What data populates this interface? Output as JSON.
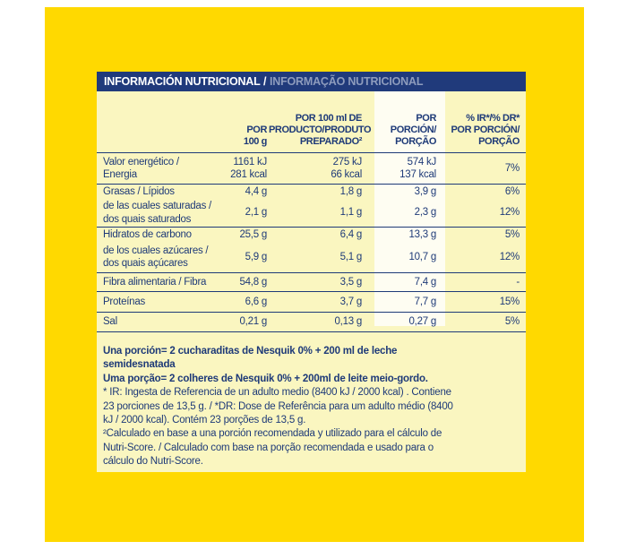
{
  "colors": {
    "package_yellow": "#FFD900",
    "panel_yellow": "#FAF6C0",
    "navy": "#1E3A78",
    "highlight_column": "#FEFDF2",
    "title_secondary": "#8E9CBD"
  },
  "title": {
    "primary": "INFORMACIÓN NUTRICIONAL",
    "separator": " / ",
    "secondary": "INFORMAÇÃO NUTRICIONAL"
  },
  "table": {
    "headers": {
      "per100g": {
        "lines": [
          "POR",
          "100 g"
        ]
      },
      "per100ml": {
        "lines": [
          "POR 100 ml DE",
          "PRODUCTO/PRODUTO",
          "PREPARADO²"
        ]
      },
      "portion": {
        "lines": [
          "POR",
          "PORCIÓN/",
          "PORÇÃO"
        ]
      },
      "ir": {
        "lines": [
          "% IR*/% DR*",
          "POR PORCIÓN/",
          "PORÇÃO"
        ]
      }
    },
    "rows": {
      "energy": {
        "label1": "Valor energético /",
        "label2": "Energia",
        "g1": "1161 kJ",
        "g2": "281 kcal",
        "m1": "275 kJ",
        "m2": "66 kcal",
        "p1": "574 kJ",
        "p2": "137 kcal",
        "ir": "7%"
      },
      "fat": {
        "label": "Grasas / Lípidos",
        "g": "4,4 g",
        "m": "1,8 g",
        "p": "3,9 g",
        "ir": "6%"
      },
      "fat_sat": {
        "label1": "de las cuales saturadas /",
        "label2": "dos quais saturados",
        "g": "2,1 g",
        "m": "1,1 g",
        "p": "2,3 g",
        "ir": "12%"
      },
      "carb": {
        "label": "Hidratos de carbono",
        "g": "25,5 g",
        "m": "6,4 g",
        "p": "13,3 g",
        "ir": "5%"
      },
      "carb_sugar": {
        "label1": "de los cuales azúcares /",
        "label2": "dos quais açúcares",
        "g": "5,9 g",
        "m": "5,1 g",
        "p": "10,7 g",
        "ir": "12%"
      },
      "fiber": {
        "label": "Fibra alimentaria / Fibra",
        "g": "54,8 g",
        "m": "3,5 g",
        "p": "7,4 g",
        "ir": "-"
      },
      "protein": {
        "label": "Proteínas",
        "g": "6,6 g",
        "m": "3,7 g",
        "p": "7,7 g",
        "ir": "15%"
      },
      "salt": {
        "label": "Sal",
        "g": "0,21 g",
        "m": "0,13 g",
        "p": "0,27 g",
        "ir": "5%"
      }
    }
  },
  "footnotes": {
    "serving_es": {
      "line1": "Una porción= 2 cucharaditas de Nesquik 0% + 200 ml de leche",
      "line2": "semidesnatada"
    },
    "serving_pt": {
      "line1": "Uma porção= 2 colheres de Nesquik 0% + 200ml de leite meio-gordo."
    },
    "reference": {
      "line1": "* IR: Ingesta de Referencia de un adulto medio (8400 kJ / 2000 kcal) . Contiene",
      "line2": "23 porciones de 13,5 g. / *DR: Dose de Referência para um adulto médio (8400",
      "line3": "kJ / 2000 kcal). Contém 23 porções de 13,5 g."
    },
    "calculation": {
      "line1": "²Calculado en base a una porción recomendada y utilizado para el cálculo de",
      "line2": "Nutri-Score. / Calculado com base na porção recomendada e usado para o",
      "line3": "cálculo do Nutri-Score."
    }
  }
}
